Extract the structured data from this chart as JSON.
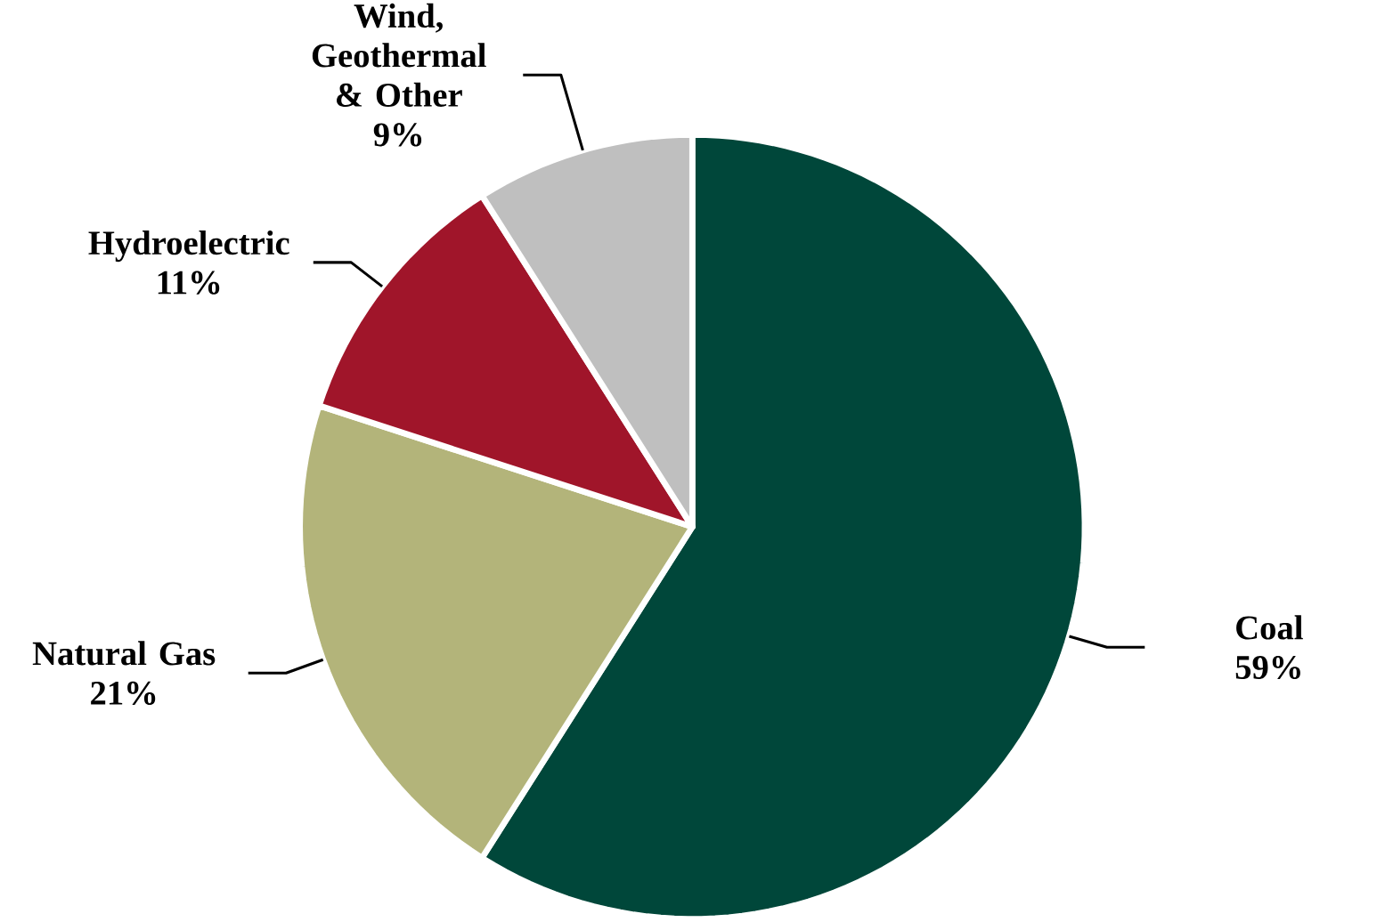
{
  "chart_data": {
    "type": "pie",
    "categories": [
      "Coal",
      "Natural Gas",
      "Hydroelectric",
      "Wind, Geothermal & Other"
    ],
    "values": [
      59,
      21,
      11,
      9
    ],
    "colors": [
      "#00473a",
      "#b3b47a",
      "#a0152a",
      "#bfbfbf"
    ],
    "value_labels": [
      "59%",
      "21%",
      "11%",
      "9%"
    ]
  }
}
